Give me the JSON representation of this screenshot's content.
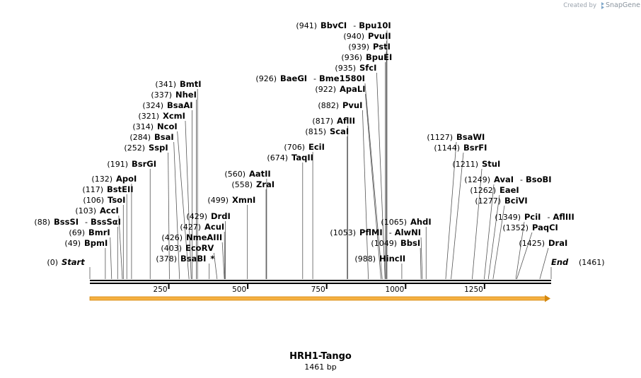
{
  "credit": {
    "prefix": "Created by",
    "brand": "SnapGene"
  },
  "sequence": {
    "length": 1461,
    "name": "HRH1-Tango",
    "length_label": "1461 bp"
  },
  "ruler": {
    "ticks": [
      250,
      500,
      750,
      1000,
      1250
    ]
  },
  "ends": [
    {
      "name": "Start",
      "pos_label": "(0)"
    },
    {
      "name": "End",
      "pos_label": "(1461)"
    }
  ],
  "sites": [
    {
      "name": "BbvCI",
      "partner": "Bpu10I",
      "pos": 941,
      "pos_label": "(941)"
    },
    {
      "name": "PvuII",
      "pos": 940,
      "pos_label": "(940)"
    },
    {
      "name": "PstI",
      "pos": 939,
      "pos_label": "(939)"
    },
    {
      "name": "BpuEI",
      "pos": 936,
      "pos_label": "(936)"
    },
    {
      "name": "SfcI",
      "pos": 935,
      "pos_label": "(935)"
    },
    {
      "name": "BaeGI",
      "partner": "Bme1580I",
      "pos": 926,
      "pos_label": "(926)"
    },
    {
      "name": "ApaLI",
      "pos": 922,
      "pos_label": "(922)"
    },
    {
      "name": "PvuI",
      "pos": 882,
      "pos_label": "(882)"
    },
    {
      "name": "AflII",
      "pos": 817,
      "pos_label": "(817)"
    },
    {
      "name": "ScaI",
      "pos": 815,
      "pos_label": "(815)"
    },
    {
      "name": "EciI",
      "pos": 706,
      "pos_label": "(706)"
    },
    {
      "name": "TaqII",
      "pos": 674,
      "pos_label": "(674)"
    },
    {
      "name": "AatII",
      "pos": 560,
      "pos_label": "(560)"
    },
    {
      "name": "ZraI",
      "pos": 558,
      "pos_label": "(558)"
    },
    {
      "name": "XmnI",
      "pos": 499,
      "pos_label": "(499)"
    },
    {
      "name": "DrdI",
      "pos": 429,
      "pos_label": "(429)"
    },
    {
      "name": "AcuI",
      "pos": 427,
      "pos_label": "(427)"
    },
    {
      "name": "NmeAIII",
      "pos": 426,
      "pos_label": "(426)"
    },
    {
      "name": "EcoRV",
      "pos": 403,
      "pos_label": "(403)"
    },
    {
      "name": "BsaBI",
      "mark": "*",
      "pos": 378,
      "pos_label": "(378)"
    },
    {
      "name": "BmtI",
      "pos": 341,
      "pos_label": "(341)"
    },
    {
      "name": "NheI",
      "pos": 337,
      "pos_label": "(337)"
    },
    {
      "name": "BsaAI",
      "pos": 324,
      "pos_label": "(324)"
    },
    {
      "name": "XcmI",
      "pos": 321,
      "pos_label": "(321)"
    },
    {
      "name": "NcoI",
      "pos": 314,
      "pos_label": "(314)"
    },
    {
      "name": "BsaI",
      "pos": 284,
      "pos_label": "(284)"
    },
    {
      "name": "SspI",
      "pos": 252,
      "pos_label": "(252)"
    },
    {
      "name": "BsrGI",
      "pos": 191,
      "pos_label": "(191)"
    },
    {
      "name": "ApoI",
      "pos": 132,
      "pos_label": "(132)"
    },
    {
      "name": "BstEII",
      "pos": 117,
      "pos_label": "(117)"
    },
    {
      "name": "TsoI",
      "pos": 106,
      "pos_label": "(106)"
    },
    {
      "name": "AccI",
      "pos": 103,
      "pos_label": "(103)"
    },
    {
      "name": "BssSI",
      "partner": "BssSαI",
      "pos": 88,
      "pos_label": "(88)"
    },
    {
      "name": "BmrI",
      "pos": 69,
      "pos_label": "(69)"
    },
    {
      "name": "BpmI",
      "pos": 49,
      "pos_label": "(49)"
    },
    {
      "name": "PflMI",
      "partner": "AlwNI",
      "pos": 1053,
      "pos_label": "(1053)"
    },
    {
      "name": "AhdI",
      "pos": 1065,
      "pos_label": "(1065)"
    },
    {
      "name": "BbsI",
      "pos": 1049,
      "pos_label": "(1049)"
    },
    {
      "name": "HincII",
      "pos": 988,
      "pos_label": "(988)"
    },
    {
      "name": "BsaWI",
      "pos": 1127,
      "pos_label": "(1127)"
    },
    {
      "name": "BsrFI",
      "pos": 1144,
      "pos_label": "(1144)"
    },
    {
      "name": "StuI",
      "pos": 1211,
      "pos_label": "(1211)"
    },
    {
      "name": "AvaI",
      "partner": "BsoBI",
      "pos": 1249,
      "pos_label": "(1249)"
    },
    {
      "name": "EaeI",
      "pos": 1262,
      "pos_label": "(1262)"
    },
    {
      "name": "BciVI",
      "pos": 1277,
      "pos_label": "(1277)"
    },
    {
      "name": "PciI",
      "partner": "AflIII",
      "pos": 1349,
      "pos_label": "(1349)"
    },
    {
      "name": "PaqCI",
      "pos": 1352,
      "pos_label": "(1352)"
    },
    {
      "name": "DraI",
      "pos": 1425,
      "pos_label": "(1425)"
    }
  ],
  "colors": {
    "feature_fill": "#f5b041",
    "feature_edge": "#d4880f",
    "line": "#333333",
    "backbone": "#000000"
  }
}
